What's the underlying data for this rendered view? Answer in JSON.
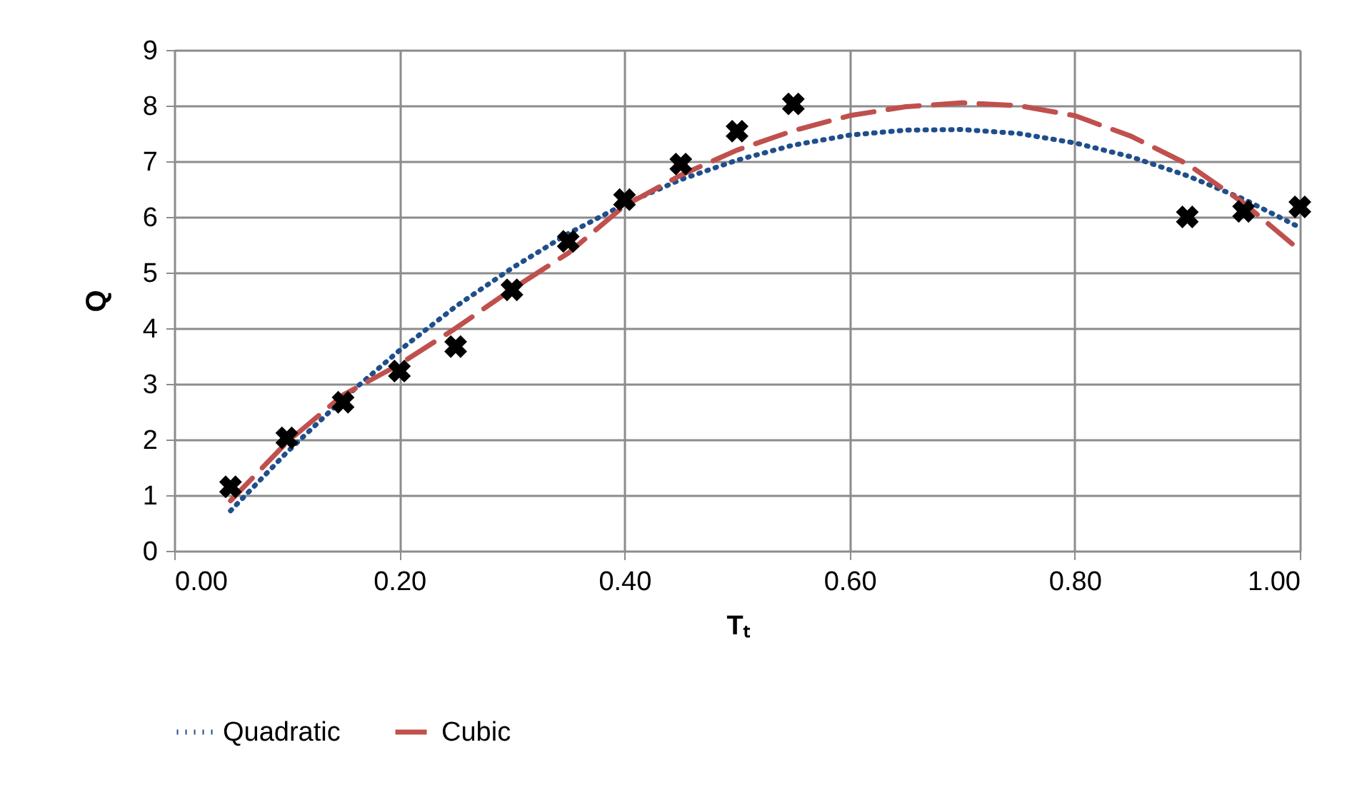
{
  "chart_data": {
    "type": "line",
    "xlabel": "Tₜ",
    "ylabel": "Q",
    "xlim": [
      0,
      1
    ],
    "xticks": [
      {
        "value": 0,
        "label": "0.00"
      },
      {
        "value": 0.2,
        "label": "0.20"
      },
      {
        "value": 0.4,
        "label": "0.40"
      },
      {
        "value": 0.6,
        "label": "0.60"
      },
      {
        "value": 0.8,
        "label": "0.80"
      },
      {
        "value": 1,
        "label": "1.00"
      }
    ],
    "ylim": [
      0,
      9
    ],
    "yticks": [
      0,
      1,
      2,
      3,
      4,
      5,
      6,
      7,
      8,
      9
    ],
    "grid": true,
    "legend": "bottom",
    "series": [
      {
        "type": "scatter",
        "marker": "cross",
        "color": "#000000",
        "x": [
          0.05,
          0.1,
          0.15,
          0.2,
          0.25,
          0.3,
          0.35,
          0.4,
          0.45,
          0.5,
          0.55,
          0.9,
          0.95,
          1.0
        ],
        "values": [
          1.15,
          2.03,
          2.67,
          3.23,
          3.67,
          4.69,
          5.56,
          6.31,
          6.95,
          7.54,
          8.03,
          6.0,
          6.1,
          6.18
        ]
      },
      {
        "name": "Quadratic",
        "color": "#1f4e8c",
        "line_style": "dotted",
        "x": [
          0.05,
          0.1,
          0.15,
          0.2,
          0.25,
          0.3,
          0.35,
          0.4,
          0.45,
          0.5,
          0.55,
          0.6,
          0.65,
          0.7,
          0.75,
          0.8,
          0.85,
          0.9,
          0.95,
          1.0
        ],
        "values": [
          0.72,
          1.77,
          2.73,
          3.6,
          4.39,
          5.08,
          5.7,
          6.23,
          6.67,
          7.02,
          7.29,
          7.47,
          7.56,
          7.57,
          7.5,
          7.33,
          7.08,
          6.74,
          6.32,
          5.81
        ]
      },
      {
        "name": "Cubic",
        "color": "#c0504d",
        "line_style": "dashed",
        "x": [
          0.05,
          0.1,
          0.15,
          0.2,
          0.25,
          0.3,
          0.35,
          0.4,
          0.45,
          0.5,
          0.55,
          0.6,
          0.65,
          0.7,
          0.75,
          0.8,
          0.85,
          0.9,
          0.95,
          1.0
        ],
        "values": [
          0.9,
          1.95,
          2.8,
          3.35,
          4.0,
          4.7,
          5.35,
          6.2,
          6.75,
          7.2,
          7.55,
          7.82,
          7.98,
          8.05,
          8.0,
          7.82,
          7.45,
          6.95,
          6.25,
          5.4
        ]
      }
    ]
  }
}
